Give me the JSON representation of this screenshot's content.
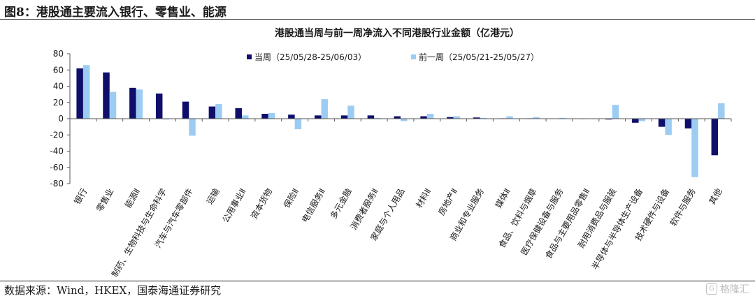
{
  "figure": {
    "title": "图8：港股通主要流入银行、零售业、能源",
    "source": "数据来源：Wind，HKEX，国泰海通证券研究",
    "watermark": "格隆汇"
  },
  "colors": {
    "current": "#0f0f6b",
    "previous": "#9dccf3",
    "axis": "#555555",
    "text": "#1a1a1a"
  },
  "chart_data": {
    "type": "bar",
    "title": "港股通当周与前一周净流入不同港股行业金额（亿港元）",
    "xlabel": "",
    "ylabel": "",
    "ylim": [
      -80,
      80
    ],
    "yticks": [
      80,
      60,
      40,
      20,
      0,
      -20,
      -40,
      -60,
      -80
    ],
    "grid": false,
    "legend_position": "top",
    "categories": [
      "银行",
      "零售业",
      "能源Ⅱ",
      "制药、生物科技与生命科学",
      "汽车与汽车零部件",
      "运输",
      "公用事业Ⅱ",
      "资本货物",
      "保险Ⅱ",
      "电信服务Ⅱ",
      "多元金融",
      "消费者服务Ⅱ",
      "家庭与个人用品",
      "材料Ⅱ",
      "房地产Ⅱ",
      "商业和专业服务",
      "媒体Ⅱ",
      "食品、饮料与烟草",
      "医疗保健设备与服务",
      "食品与主要用品零售Ⅱ",
      "耐用消费品与服装",
      "半导体与半导体生产设备",
      "技术硬件与设备",
      "软件与服务",
      "其他"
    ],
    "series": [
      {
        "name": "当周（25/05/28-25/06/03）",
        "values": [
          62,
          57,
          38,
          31,
          21,
          15,
          13,
          6,
          5,
          4,
          4,
          4,
          3,
          3,
          2,
          1.5,
          0.5,
          0.5,
          0.3,
          0.2,
          -1,
          -5,
          -10,
          -12,
          -45
        ]
      },
      {
        "name": "前一周（25/05/21-25/05/27）",
        "values": [
          66,
          33,
          36,
          -1,
          -21,
          18,
          4,
          7,
          -13,
          24,
          16,
          1,
          -3,
          6,
          3,
          1,
          3,
          2,
          1,
          0.3,
          17,
          -3,
          -20,
          -72,
          19
        ]
      }
    ]
  }
}
